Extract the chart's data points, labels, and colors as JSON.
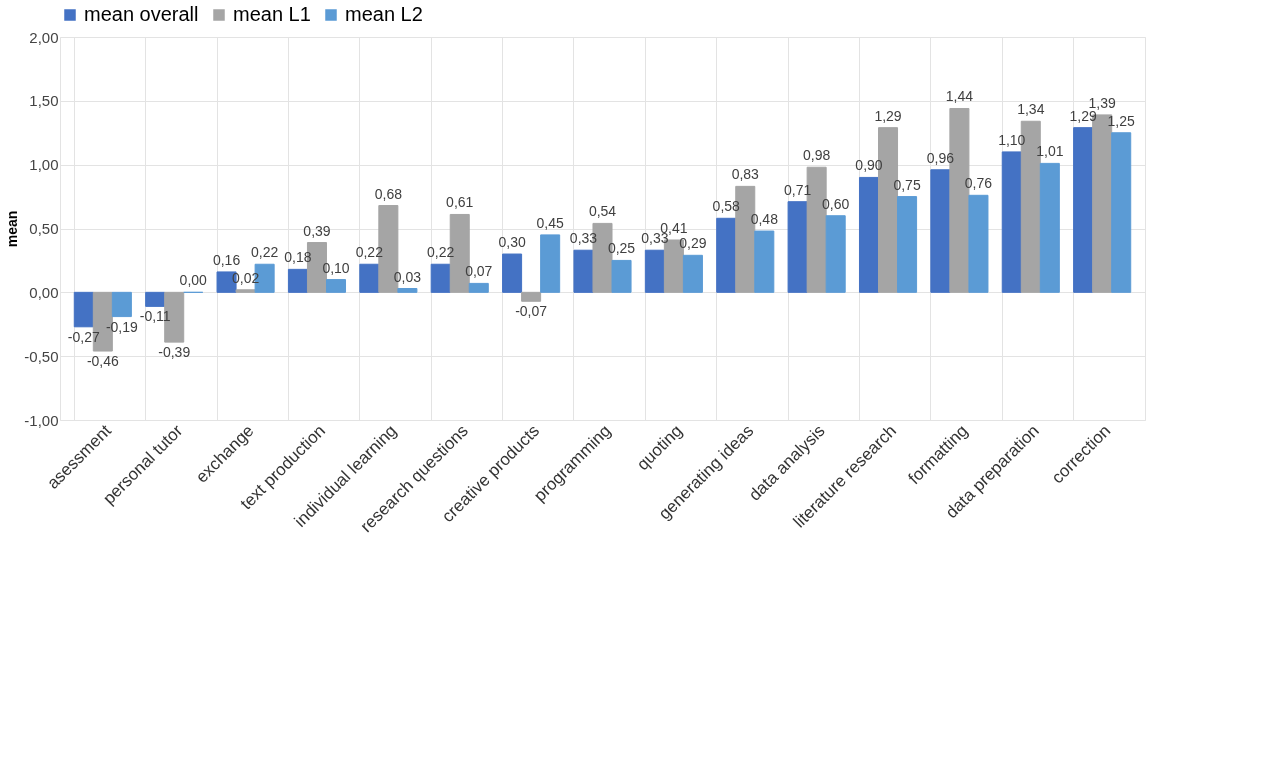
{
  "chart_data": {
    "type": "bar",
    "ylabel": "mean",
    "categories": [
      "asessment",
      "personal tutor",
      "exchange",
      "text production",
      "individual learning",
      "research questions",
      "creative products",
      "programming",
      "quoting",
      "generating ideas",
      "data analysis",
      "literature research",
      "formatting",
      "data preparation",
      "correction"
    ],
    "series": [
      {
        "name": "mean overall",
        "color": "#4472c4",
        "values": [
          -0.27,
          -0.11,
          0.16,
          0.18,
          0.22,
          0.22,
          0.3,
          0.33,
          0.33,
          0.58,
          0.71,
          0.9,
          0.96,
          1.1,
          1.29
        ],
        "value_labels": [
          "-0,27",
          "-0,11",
          "0,16",
          "0,18",
          "0,22",
          "0,22",
          "0,30",
          "0,33",
          "0,33",
          "0,58",
          "0,71",
          "0,90",
          "0,96",
          "1,10",
          "1,29"
        ]
      },
      {
        "name": "mean L1",
        "color": "#a5a5a5",
        "values": [
          -0.46,
          -0.39,
          0.02,
          0.39,
          0.68,
          0.61,
          -0.07,
          0.54,
          0.41,
          0.83,
          0.98,
          1.29,
          1.44,
          1.34,
          1.39
        ],
        "value_labels": [
          "-0,46",
          "-0,39",
          "0,02",
          "0,39",
          "0,68",
          "0,61",
          "-0,07",
          "0,54",
          "0,41",
          "0,83",
          "0,98",
          "1,29",
          "1,44",
          "1,34",
          "1,39"
        ]
      },
      {
        "name": "mean L2",
        "color": "#5b9bd5",
        "values": [
          -0.19,
          0.0,
          0.22,
          0.1,
          0.03,
          0.07,
          0.45,
          0.25,
          0.29,
          0.48,
          0.6,
          0.75,
          0.76,
          1.01,
          1.25
        ],
        "value_labels": [
          "-0,19",
          "0,00",
          "0,22",
          "0,10",
          "0,03",
          "0,07",
          "0,45",
          "0,25",
          "0,29",
          "0,48",
          "0,60",
          "0,75",
          "0,76",
          "1,01",
          "1,25"
        ]
      }
    ],
    "ylim": [
      -1,
      2
    ],
    "yticks": [
      {
        "value": -1,
        "label": "-1,00"
      },
      {
        "value": -0.5,
        "label": "-0,50"
      },
      {
        "value": 0,
        "label": "0,00"
      },
      {
        "value": 0.5,
        "label": "0,50"
      },
      {
        "value": 1,
        "label": "1,00"
      },
      {
        "value": 1.5,
        "label": "1,50"
      },
      {
        "value": 2,
        "label": "2,00"
      }
    ],
    "grid": true,
    "legend": "top"
  }
}
